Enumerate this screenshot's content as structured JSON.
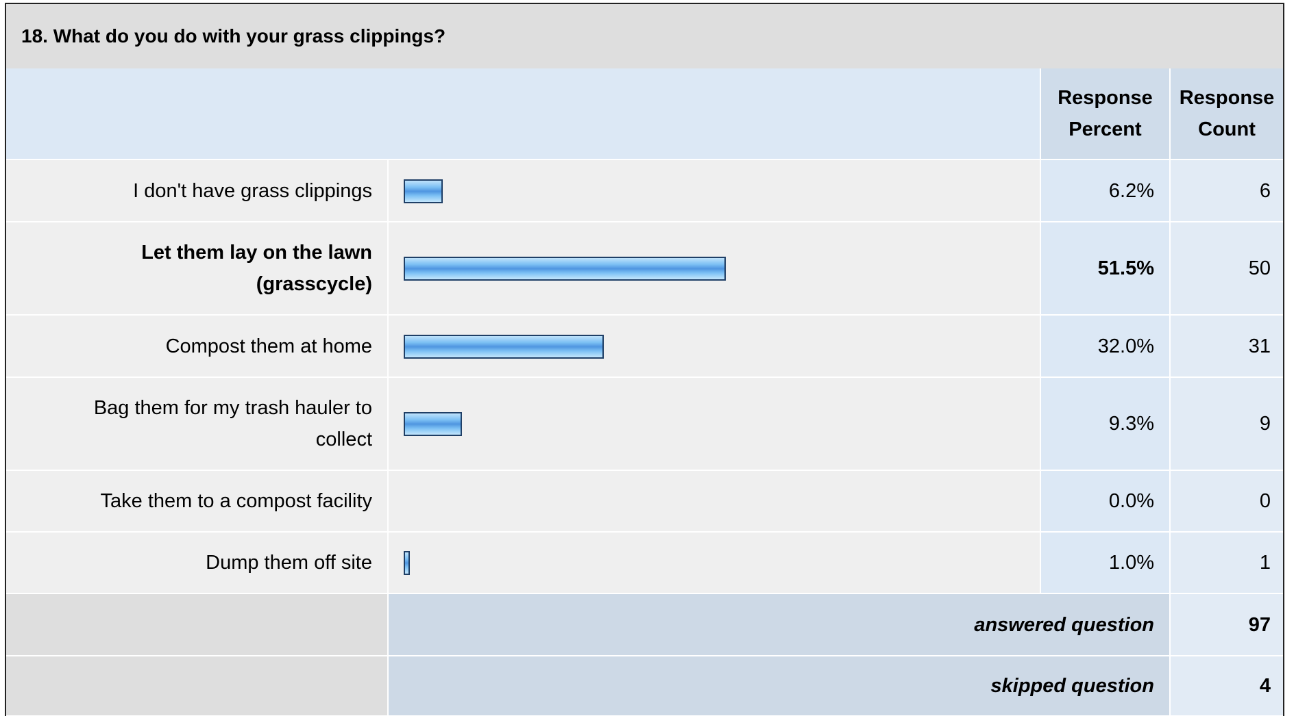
{
  "title": "18. What do you do with your grass clippings?",
  "header": [
    "Response Percent",
    "Response Count"
  ],
  "rows": [
    {
      "label": "I don't have grass clippings",
      "percent": 6.2,
      "percent_label": "6.2%",
      "count": 6
    },
    {
      "label": "Let them lay on the lawn (grasscycle)",
      "percent": 51.5,
      "percent_label": "51.5%",
      "count": 50
    },
    {
      "label": "Compost them at home",
      "percent": 32.0,
      "percent_label": "32.0%",
      "count": 31
    },
    {
      "label": "Bag them for my trash hauler to collect",
      "percent": 9.3,
      "percent_label": "9.3%",
      "count": 9
    },
    {
      "label": "Take them to a compost facility",
      "percent": 0.0,
      "percent_label": "0.0%",
      "count": 0
    },
    {
      "label": "Dump them off site",
      "percent": 1.0,
      "percent_label": "1.0%",
      "count": 1
    }
  ],
  "summary": [
    {
      "label": "answered question",
      "count": 97
    },
    {
      "label": "skipped question",
      "count": 4
    }
  ]
}
